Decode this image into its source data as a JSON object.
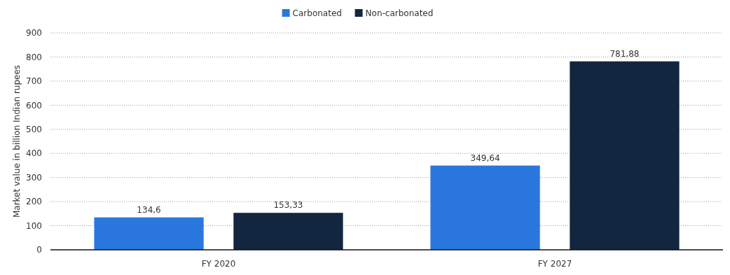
{
  "chart_data": {
    "type": "bar",
    "ylabel": "Market value in billion Indian rupees",
    "categories": [
      "FY 2020",
      "FY 2027"
    ],
    "series": [
      {
        "name": "Carbonated",
        "color": "#2a78de",
        "values": [
          134.6,
          349.64
        ],
        "value_labels": [
          "134,6",
          "349,64"
        ]
      },
      {
        "name": "Non-carbonated",
        "color": "#12263f",
        "values": [
          153.33,
          781.88
        ],
        "value_labels": [
          "153,33",
          "781,88"
        ]
      }
    ],
    "ylim": [
      0,
      900
    ],
    "yticks": [
      0,
      100,
      200,
      300,
      400,
      500,
      600,
      700,
      800,
      900
    ],
    "grid": "y",
    "legend": "top"
  }
}
